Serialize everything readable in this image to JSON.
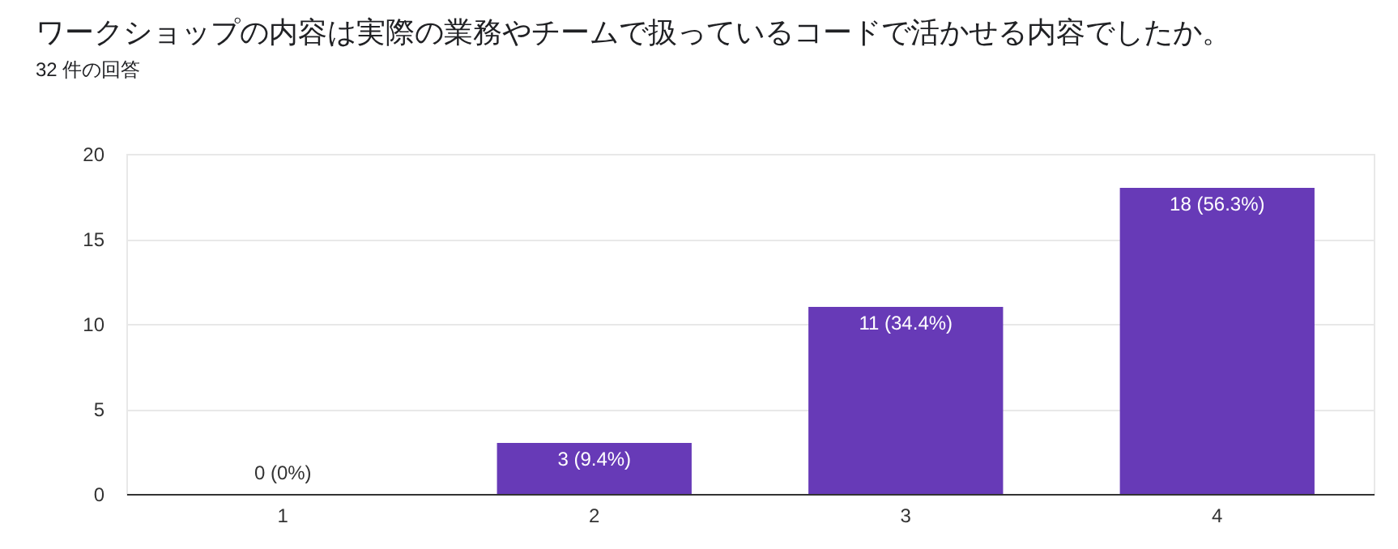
{
  "chart_data": {
    "type": "bar",
    "title": "ワークショップの内容は実際の業務やチームで扱っているコードで活かせる内容でしたか。",
    "subtitle": "32 件の回答",
    "categories": [
      "1",
      "2",
      "3",
      "4"
    ],
    "values": [
      0,
      3,
      11,
      18
    ],
    "value_labels": [
      "0 (0%)",
      "3 (9.4%)",
      "11 (34.4%)",
      "18 (56.3%)"
    ],
    "color": "#673ab7",
    "ylim": [
      0,
      20
    ],
    "yticks": [
      0,
      5,
      10,
      15,
      20
    ],
    "grid": "y"
  }
}
